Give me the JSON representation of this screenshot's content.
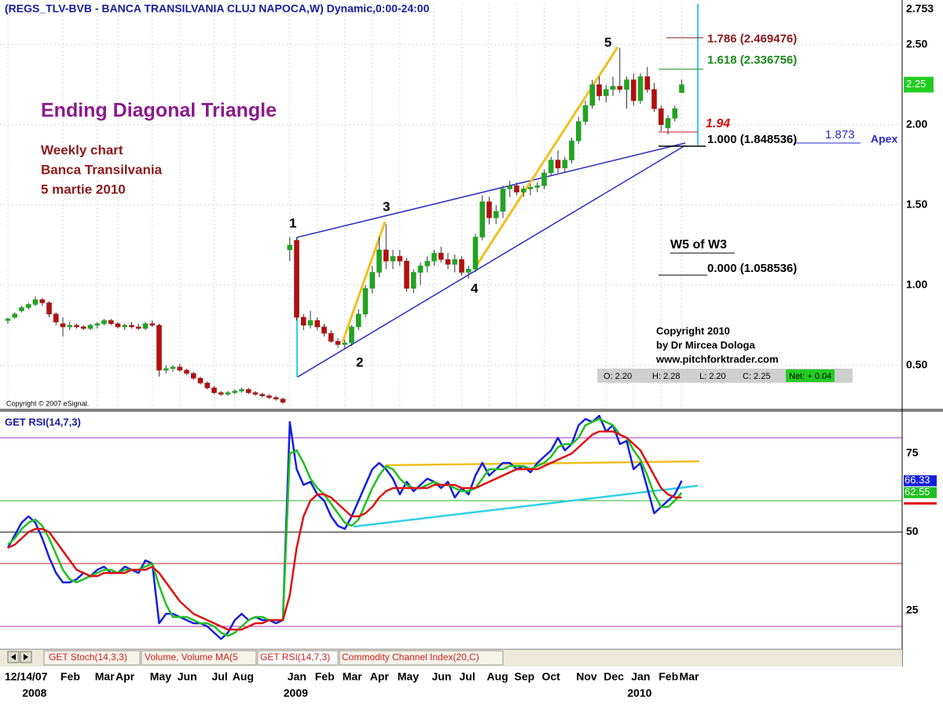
{
  "header": "(REGS_TLV-BVB - BANCA TRANSILVANIA CLUJ NAPOCA,W) Dynamic,0:00-24:00",
  "chart_data": [
    {
      "type": "candlestick",
      "up_color": "#22a322",
      "down_color": "#b01010",
      "grid": true,
      "ylim": [
        0.23,
        2.753
      ],
      "yticks": [
        {
          "value": 0.5,
          "label": "0.50"
        },
        {
          "value": 1,
          "label": "1.00"
        },
        {
          "value": 1.5,
          "label": "1.50"
        },
        {
          "value": 2,
          "label": "2.00"
        },
        {
          "value": 2.5,
          "label": "2.50"
        },
        2.753
      ],
      "categories": [
        "12/14/07",
        null,
        null,
        null,
        null,
        null,
        null,
        null,
        "Feb",
        null,
        null,
        null,
        null,
        "Mar",
        null,
        null,
        "Apr",
        null,
        null,
        null,
        null,
        "May",
        null,
        null,
        null,
        "Jun",
        null,
        null,
        null,
        null,
        "Jul",
        null,
        null,
        "Aug",
        null,
        null,
        null,
        null,
        null,
        null,
        null,
        "Jan",
        null,
        null,
        null,
        "Feb",
        null,
        null,
        null,
        "Mar",
        null,
        null,
        null,
        "Apr",
        null,
        null,
        null,
        "May",
        null,
        null,
        null,
        null,
        "Jun",
        null,
        null,
        null,
        "Jul",
        null,
        null,
        null,
        "Aug",
        null,
        null,
        null,
        "Sep",
        null,
        null,
        null,
        "Oct",
        null,
        null,
        null,
        null,
        "Nov",
        null,
        null,
        null,
        "Dec",
        null,
        null,
        null,
        "Jan",
        null,
        null,
        null,
        "Feb",
        null,
        null,
        "Mar"
      ],
      "year_labels": [
        null,
        null,
        null,
        "2008",
        null,
        null,
        null,
        null,
        null,
        null,
        null,
        null,
        null,
        null,
        null,
        null,
        null,
        null,
        null,
        null,
        null,
        null,
        null,
        null,
        null,
        null,
        null,
        null,
        null,
        null,
        null,
        null,
        null,
        null,
        null,
        null,
        null,
        null,
        null,
        null,
        null,
        "2009",
        null,
        null,
        null,
        null,
        null,
        null,
        null,
        null,
        null,
        null,
        null,
        null,
        null,
        null,
        null,
        null,
        null,
        null,
        null,
        null,
        null,
        null,
        null,
        null,
        null,
        null,
        null,
        null,
        null,
        null,
        null,
        null,
        null,
        null,
        null,
        null,
        null,
        null,
        null,
        null,
        null,
        null,
        null,
        null,
        null,
        null,
        null,
        null,
        null,
        "2010",
        null,
        null,
        null,
        null,
        null,
        null,
        null
      ],
      "open": [
        0.78,
        0.8,
        0.84,
        0.86,
        0.88,
        0.91,
        0.89,
        0.82,
        0.76,
        0.74,
        0.75,
        0.74,
        0.73,
        0.75,
        0.76,
        0.78,
        0.76,
        0.74,
        0.75,
        0.74,
        0.73,
        0.76,
        0.75,
        0.47,
        0.48,
        0.49,
        0.47,
        0.45,
        0.42,
        0.39,
        0.36,
        0.33,
        0.32,
        0.33,
        0.34,
        0.35,
        0.33,
        0.32,
        0.31,
        0.3,
        0.29,
        1.22,
        1.28,
        0.8,
        0.75,
        0.78,
        0.74,
        0.7,
        0.65,
        0.63,
        0.64,
        0.74,
        0.82,
        0.98,
        1.08,
        1.22,
        1.15,
        1.18,
        1.15,
        0.98,
        1.08,
        1.12,
        1.15,
        1.2,
        1.16,
        1.13,
        1.16,
        1.08,
        1.1,
        1.3,
        1.52,
        1.42,
        1.46,
        1.6,
        1.62,
        1.58,
        1.6,
        1.61,
        1.62,
        1.7,
        1.78,
        1.73,
        1.78,
        1.9,
        2.02,
        2.12,
        2.25,
        2.18,
        2.22,
        2.24,
        2.22,
        2.28,
        2.15,
        2.3,
        2.22,
        2.1,
        1.98,
        2.04,
        2.2
      ],
      "high": [
        0.8,
        0.83,
        0.87,
        0.89,
        0.93,
        0.92,
        0.9,
        0.83,
        0.8,
        0.77,
        0.76,
        0.75,
        0.76,
        0.77,
        0.79,
        0.79,
        0.77,
        0.76,
        0.77,
        0.76,
        0.77,
        0.78,
        0.76,
        0.5,
        0.5,
        0.51,
        0.48,
        0.46,
        0.43,
        0.4,
        0.37,
        0.34,
        0.34,
        0.35,
        0.36,
        0.36,
        0.34,
        0.33,
        0.32,
        0.31,
        0.3,
        1.3,
        1.3,
        0.82,
        0.84,
        0.8,
        0.76,
        0.72,
        0.67,
        0.66,
        0.75,
        0.85,
        1.0,
        1.12,
        1.3,
        1.38,
        1.22,
        1.22,
        1.17,
        1.1,
        1.14,
        1.18,
        1.22,
        1.24,
        1.2,
        1.19,
        1.18,
        1.12,
        1.32,
        1.56,
        1.55,
        1.5,
        1.62,
        1.65,
        1.64,
        1.62,
        1.63,
        1.64,
        1.72,
        1.8,
        1.84,
        1.8,
        1.92,
        2.05,
        2.15,
        2.28,
        2.3,
        2.25,
        2.3,
        2.48,
        2.3,
        2.32,
        2.32,
        2.36,
        2.26,
        2.12,
        2.06,
        2.12,
        2.28
      ],
      "low": [
        0.76,
        0.79,
        0.83,
        0.85,
        0.87,
        0.87,
        0.8,
        0.75,
        0.68,
        0.72,
        0.73,
        0.72,
        0.72,
        0.73,
        0.75,
        0.75,
        0.73,
        0.72,
        0.73,
        0.72,
        0.72,
        0.74,
        0.43,
        0.45,
        0.46,
        0.46,
        0.44,
        0.41,
        0.38,
        0.35,
        0.32,
        0.31,
        0.31,
        0.32,
        0.33,
        0.32,
        0.31,
        0.3,
        0.29,
        0.28,
        0.26,
        1.15,
        0.78,
        0.72,
        0.73,
        0.72,
        0.68,
        0.64,
        0.61,
        0.6,
        0.62,
        0.72,
        0.8,
        0.95,
        1.05,
        1.1,
        1.1,
        1.12,
        0.96,
        0.95,
        1.0,
        1.08,
        1.12,
        1.14,
        1.1,
        1.08,
        1.06,
        1.04,
        1.08,
        1.28,
        1.38,
        1.38,
        1.42,
        1.55,
        1.56,
        1.55,
        1.56,
        1.58,
        1.6,
        1.68,
        1.7,
        1.7,
        1.76,
        1.88,
        2.0,
        2.1,
        2.15,
        2.14,
        2.18,
        2.2,
        2.1,
        2.12,
        2.13,
        2.2,
        2.08,
        1.96,
        1.94,
        2.02,
        2.2
      ],
      "close": [
        0.79,
        0.82,
        0.86,
        0.88,
        0.91,
        0.89,
        0.82,
        0.77,
        0.74,
        0.75,
        0.74,
        0.73,
        0.75,
        0.76,
        0.78,
        0.76,
        0.74,
        0.75,
        0.74,
        0.73,
        0.76,
        0.75,
        0.47,
        0.48,
        0.49,
        0.47,
        0.45,
        0.42,
        0.39,
        0.36,
        0.33,
        0.32,
        0.33,
        0.34,
        0.35,
        0.33,
        0.32,
        0.31,
        0.3,
        0.29,
        0.27,
        1.25,
        0.8,
        0.75,
        0.78,
        0.74,
        0.7,
        0.65,
        0.63,
        0.64,
        0.74,
        0.82,
        0.98,
        1.08,
        1.22,
        1.15,
        1.18,
        1.15,
        0.98,
        1.08,
        1.12,
        1.15,
        1.2,
        1.16,
        1.13,
        1.16,
        1.08,
        1.1,
        1.3,
        1.52,
        1.42,
        1.46,
        1.6,
        1.62,
        1.58,
        1.6,
        1.61,
        1.62,
        1.7,
        1.78,
        1.73,
        1.78,
        1.9,
        2.02,
        2.12,
        2.25,
        2.18,
        2.22,
        2.24,
        2.22,
        2.28,
        2.15,
        2.3,
        2.22,
        2.1,
        2.0,
        2.04,
        2.1,
        2.25
      ],
      "annotations": {
        "title": "Ending Diagonal Triangle",
        "subtitle": [
          "Weekly chart",
          "Banca Transilvania",
          "5 martie 2010"
        ],
        "waves": [
          "1",
          "2",
          "3",
          "4",
          "5"
        ],
        "fib_1786": "1.786 (2.469476)",
        "fib_1618": "1.618 (2.336756)",
        "level_194": "1.94",
        "fib_1000": "1.000 (1.848536)",
        "apex_value": "1.873",
        "apex": "Apex",
        "w5": "W5 of W3",
        "fib_0": "0.000 (1.058536)",
        "copyright": [
          "Copyright 2010",
          "by Dr Mircea Dologa",
          "www.pitchforktrader.com"
        ],
        "esignal": "Copyright © 2007 eSignal.",
        "quote": [
          "O:  2.20",
          "H:  2.28",
          "L:  2.20",
          "C:  2.25"
        ],
        "net": "Net: + 0.04"
      }
    },
    {
      "type": "line",
      "title": "GET RSI(14,7,3)",
      "ylim": [
        13,
        88
      ],
      "yticks": [
        25,
        50,
        75
      ],
      "levels": [
        {
          "value": 80,
          "color": "#b030c0"
        },
        {
          "value": 60,
          "color": "#30b030"
        },
        {
          "value": 50,
          "color": "#000000"
        },
        {
          "value": 40,
          "color": "#d02020"
        },
        {
          "value": 20,
          "color": "#b030c0"
        }
      ],
      "series": [
        {
          "color": "#1020e0",
          "values": [
            45,
            49,
            53,
            55,
            53,
            48,
            42,
            37,
            34,
            34,
            35,
            37,
            36,
            38,
            39,
            37,
            37,
            39,
            38,
            37,
            41,
            40,
            21,
            24,
            24,
            23,
            22,
            21,
            21,
            20,
            18,
            16,
            18,
            22,
            24,
            22,
            23,
            22,
            22,
            21,
            22,
            85,
            70,
            65,
            66,
            62,
            60,
            55,
            52,
            51,
            55,
            60,
            65,
            70,
            72,
            70,
            67,
            62,
            66,
            63,
            65,
            67,
            66,
            64,
            66,
            61,
            64,
            62,
            68,
            72,
            68,
            70,
            72,
            72,
            70,
            71,
            69,
            72,
            74,
            76,
            80,
            76,
            78,
            84,
            86,
            85,
            87,
            82,
            84,
            78,
            79,
            70,
            72,
            64,
            56,
            58,
            60,
            62,
            66.33
          ]
        },
        {
          "color": "#20c020",
          "values": [
            46,
            48,
            51,
            53,
            54,
            52,
            48,
            43,
            38,
            35,
            34,
            35,
            36,
            37,
            38,
            38,
            37,
            38,
            38,
            38,
            39,
            40,
            33,
            27,
            23,
            23,
            23,
            22,
            21,
            21,
            20,
            18,
            17,
            18,
            20,
            22,
            23,
            23,
            22,
            22,
            22,
            75,
            76,
            72,
            67,
            64,
            62,
            59,
            56,
            53,
            52,
            54,
            59,
            64,
            68,
            71,
            70,
            67,
            65,
            64,
            64,
            65,
            66,
            65,
            65,
            64,
            63,
            63,
            64,
            67,
            70,
            70,
            70,
            71,
            71,
            71,
            70,
            71,
            72,
            74,
            77,
            78,
            78,
            80,
            84,
            85,
            86,
            85,
            84,
            81,
            80,
            76,
            73,
            68,
            62,
            58,
            58,
            60,
            62.55
          ]
        },
        {
          "color": "#e01010",
          "values": [
            45,
            46,
            48,
            50,
            51,
            51,
            50,
            47,
            44,
            41,
            38,
            37,
            36,
            36,
            37,
            37,
            37,
            37,
            38,
            38,
            38,
            39,
            37,
            34,
            31,
            28,
            26,
            24,
            23,
            22,
            21,
            20,
            19,
            19,
            19,
            20,
            21,
            21,
            22,
            22,
            22,
            30,
            45,
            55,
            60,
            62,
            62,
            61,
            59,
            57,
            55,
            55,
            56,
            58,
            61,
            63,
            64,
            64,
            64,
            64,
            64,
            64,
            65,
            65,
            65,
            65,
            64,
            64,
            64,
            65,
            66,
            67,
            68,
            69,
            70,
            70,
            70,
            70,
            71,
            72,
            73,
            74,
            75,
            77,
            79,
            81,
            82,
            82,
            82,
            81,
            80,
            78,
            76,
            72,
            68,
            64,
            62,
            61,
            61
          ]
        }
      ]
    }
  ],
  "tabs": [
    "GET Stoch(14,3,3)",
    "Volume, Volume MA(5",
    "GET RSI(14,7,3)",
    "Commodity Channel Index(20,C)"
  ]
}
